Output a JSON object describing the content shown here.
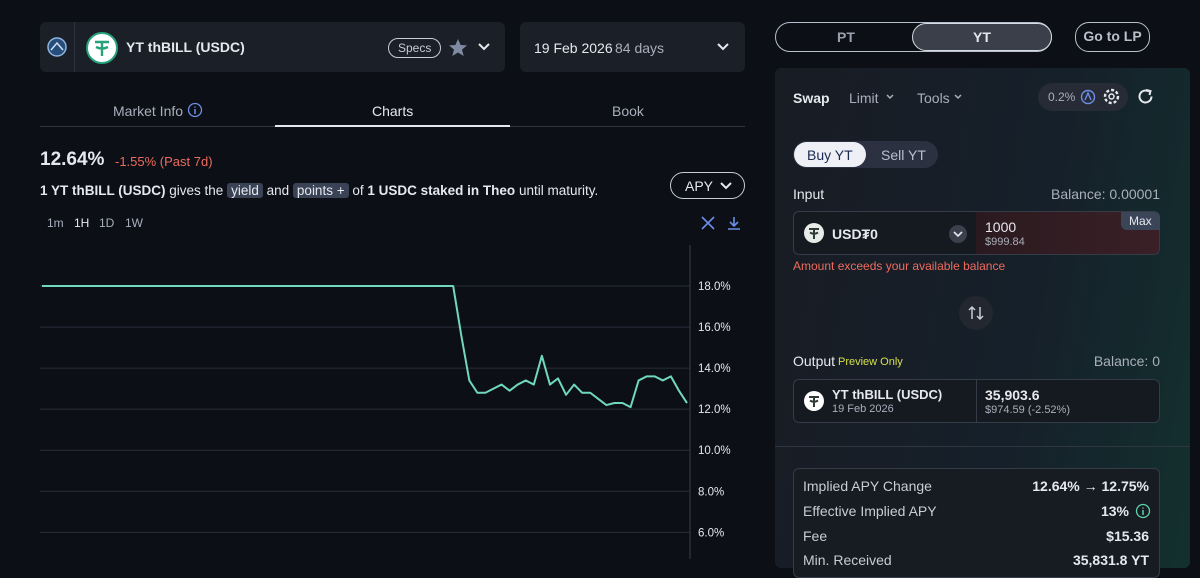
{
  "market_header": {
    "name": "YT thBILL (USDC)",
    "specs": "Specs",
    "date": "19 Feb 2026",
    "days": "84 days"
  },
  "tabs": [
    "Market Info",
    "Charts",
    "Book"
  ],
  "summary": {
    "apy": "12.64%",
    "change": "-1.55% (Past 7d)"
  },
  "description": {
    "asset": "1 YT thBILL (USDC)",
    "gives": "gives the",
    "yield": "yield",
    "and": "and",
    "points": "points +",
    "of": "of",
    "underlying": "1 USDC staked in Theo",
    "until": "until maturity."
  },
  "apy_button": "APY",
  "timeframes": [
    "1m",
    "1H",
    "1D",
    "1W"
  ],
  "chart_data": {
    "type": "line",
    "color": "#6fd8bf",
    "values": [
      18,
      18,
      18,
      18,
      18,
      18,
      18,
      18,
      18,
      18,
      18,
      18,
      18,
      18,
      18,
      18,
      18,
      18,
      18,
      18,
      18,
      18,
      18,
      18,
      18,
      18,
      18,
      18,
      18,
      18,
      18,
      18,
      18,
      18,
      18,
      18,
      18,
      18,
      18,
      18,
      18,
      18,
      18,
      18,
      18,
      18,
      18,
      18,
      18,
      18,
      18,
      18,
      15.6,
      13.4,
      12.8,
      12.8,
      13.0,
      13.2,
      12.9,
      13.2,
      13.4,
      13.2,
      14.6,
      13.2,
      13.5,
      12.7,
      13.2,
      12.8,
      12.8,
      12.5,
      12.2,
      12.3,
      12.3,
      12.1,
      13.4,
      13.6,
      13.6,
      13.4,
      13.6,
      12.9,
      12.3
    ],
    "ylim": [
      4.7,
      20
    ],
    "yticks": [
      {
        "value": 6,
        "label": "6.0%"
      },
      {
        "value": 8,
        "label": "8.0%"
      },
      {
        "value": 10,
        "label": "10.0%"
      },
      {
        "value": 12,
        "label": "12.0%"
      },
      {
        "value": 14,
        "label": "14.0%"
      },
      {
        "value": 16,
        "label": "16.0%"
      },
      {
        "value": 18,
        "label": "18.0%"
      }
    ],
    "grid": true
  },
  "trade": {
    "toggle": [
      "PT",
      "YT"
    ],
    "go_lp": "Go to LP",
    "modes": [
      "Swap",
      "Limit",
      "Tools"
    ],
    "slippage": "0.2%",
    "sides": [
      "Buy YT",
      "Sell YT"
    ],
    "input": {
      "label": "Input",
      "balance": "Balance: 0.00001",
      "token": "USD₮0",
      "amount": "1000",
      "usd": "$999.84",
      "max": "Max",
      "error": "Amount exceeds your available balance"
    },
    "output": {
      "label": "Output",
      "preview": "Preview Only",
      "balance": "Balance: 0",
      "token": "YT thBILL (USDC)",
      "date": "19 Feb 2026",
      "amount": "35,903.6",
      "usd": "$974.59 (-2.52%)"
    },
    "details": [
      [
        "Implied APY Change",
        "12.64% → 12.75%"
      ],
      [
        "Effective Implied APY",
        "13%"
      ],
      [
        "Fee",
        "$15.36"
      ],
      [
        "Min. Received",
        "35,831.8 YT"
      ]
    ]
  }
}
